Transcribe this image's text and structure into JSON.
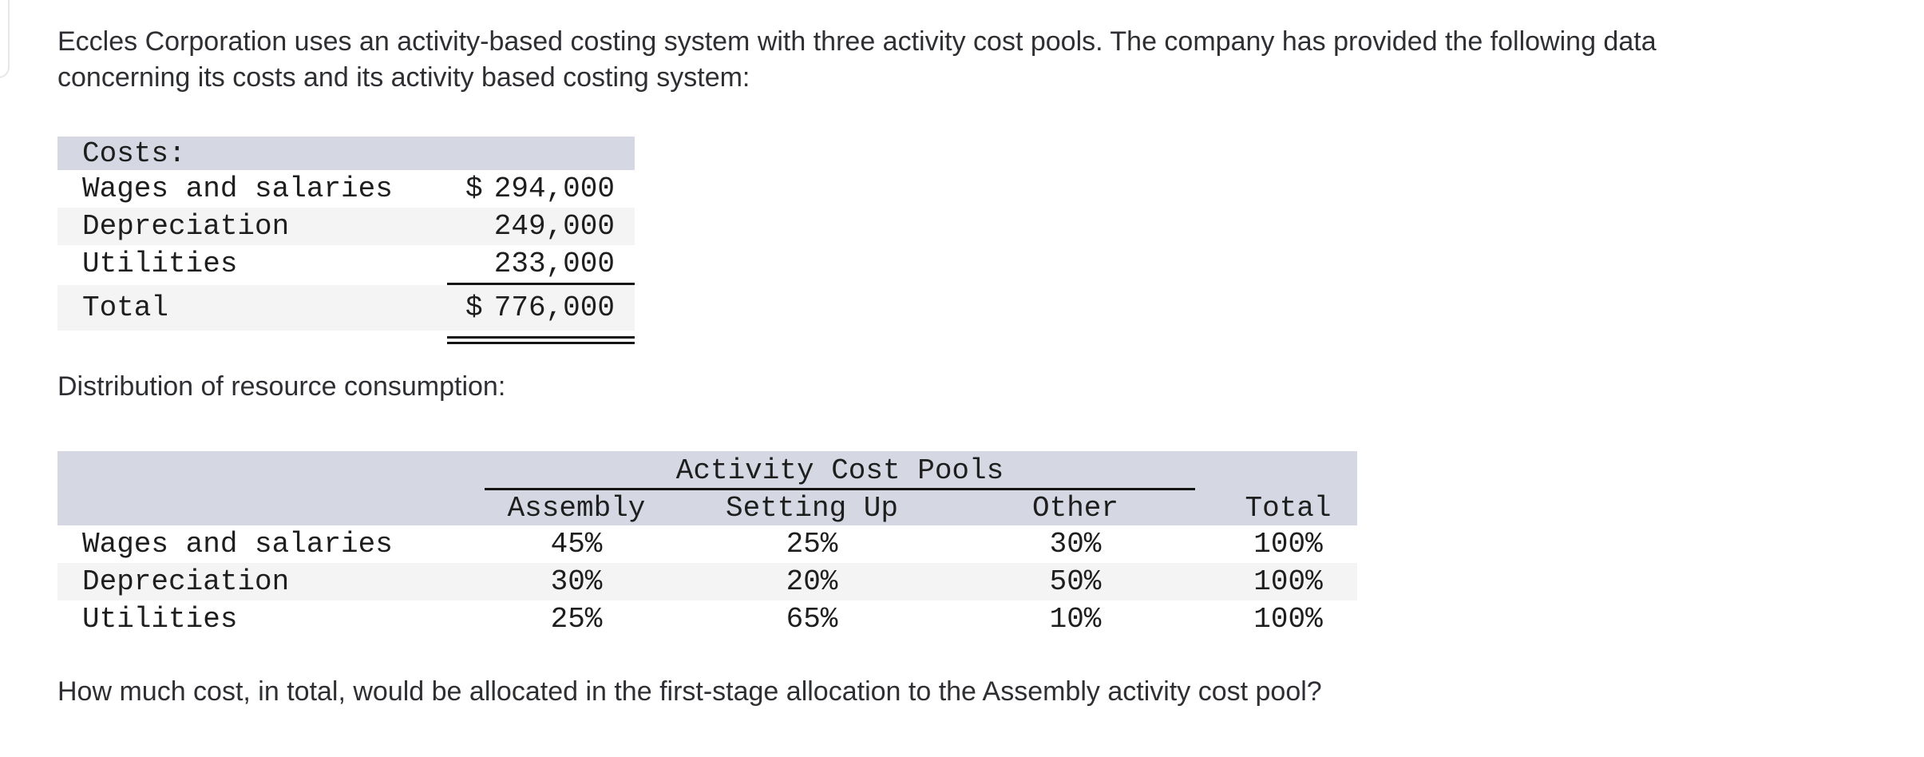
{
  "intro": {
    "text": "Eccles Corporation uses an activity-based costing system with three activity cost pools. The company has provided the following data concerning its costs and its activity based costing system:"
  },
  "costs_table": {
    "title": "Costs:",
    "rows": [
      {
        "label": "Wages and salaries",
        "currency": "$",
        "amount": "294,000"
      },
      {
        "label": "Depreciation",
        "currency": "",
        "amount": "249,000"
      },
      {
        "label": "Utilities",
        "currency": "",
        "amount": "233,000"
      }
    ],
    "total_row": {
      "label": "Total",
      "currency": "$",
      "amount": "776,000"
    }
  },
  "distribution": {
    "label": "Distribution of resource consumption:"
  },
  "distribution_table": {
    "group_header": "Activity Cost Pools",
    "columns": [
      "Assembly",
      "Setting Up",
      "Other",
      "Total"
    ],
    "rows": [
      {
        "label": "Wages and salaries",
        "values": [
          "45%",
          "25%",
          "30%",
          "100%"
        ]
      },
      {
        "label": "Depreciation",
        "values": [
          "30%",
          "20%",
          "50%",
          "100%"
        ]
      },
      {
        "label": "Utilities",
        "values": [
          "25%",
          "65%",
          "10%",
          "100%"
        ]
      }
    ]
  },
  "question": {
    "text": "How much cost, in total, would be allocated in the first-stage allocation to the Assembly activity cost pool?"
  },
  "colors": {
    "table_header_bg": "#d5d8e3",
    "row_alt_bg": "#f4f4f5",
    "rule": "#151515",
    "body_text": "#2e2f33",
    "table_text": "#1e1e1e",
    "page_bg": "#ffffff"
  }
}
